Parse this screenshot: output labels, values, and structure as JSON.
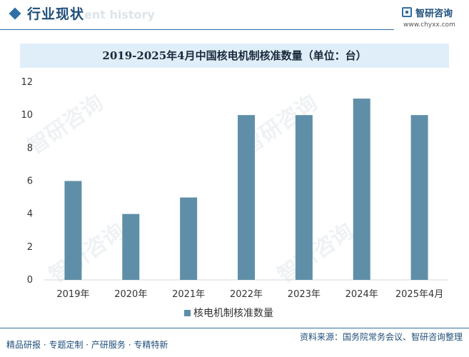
{
  "header": {
    "title": "行业现状",
    "ghost_text": "ent history",
    "logo_name": "智研咨询",
    "logo_url": "www.chyxx.com"
  },
  "watermark_text": "智研咨询",
  "chart_data": {
    "type": "bar",
    "title": "2019-2025年4月中国核电机制核准数量（单位：台）",
    "categories": [
      "2019年",
      "2020年",
      "2021年",
      "2022年",
      "2023年",
      "2024年",
      "2025年4月"
    ],
    "series": [
      {
        "name": "核电机制核准数量",
        "values": [
          6,
          4,
          5,
          10,
          10,
          11,
          10
        ]
      }
    ],
    "ylim": [
      0,
      12
    ],
    "yticks": [
      0,
      2,
      4,
      6,
      8,
      10,
      12
    ],
    "xlabel": "",
    "ylabel": "",
    "grid": false,
    "legend": "bottom-center",
    "colors": {
      "bar": "#5f8fa8",
      "title_band": "#dfeef9",
      "accent": "#2f6fa6"
    }
  },
  "footer": {
    "left": "精品研报 · 专题定制 · 产研服务 · 专精特新",
    "right": "资料来源：国务院常务会议、智研咨询整理"
  }
}
